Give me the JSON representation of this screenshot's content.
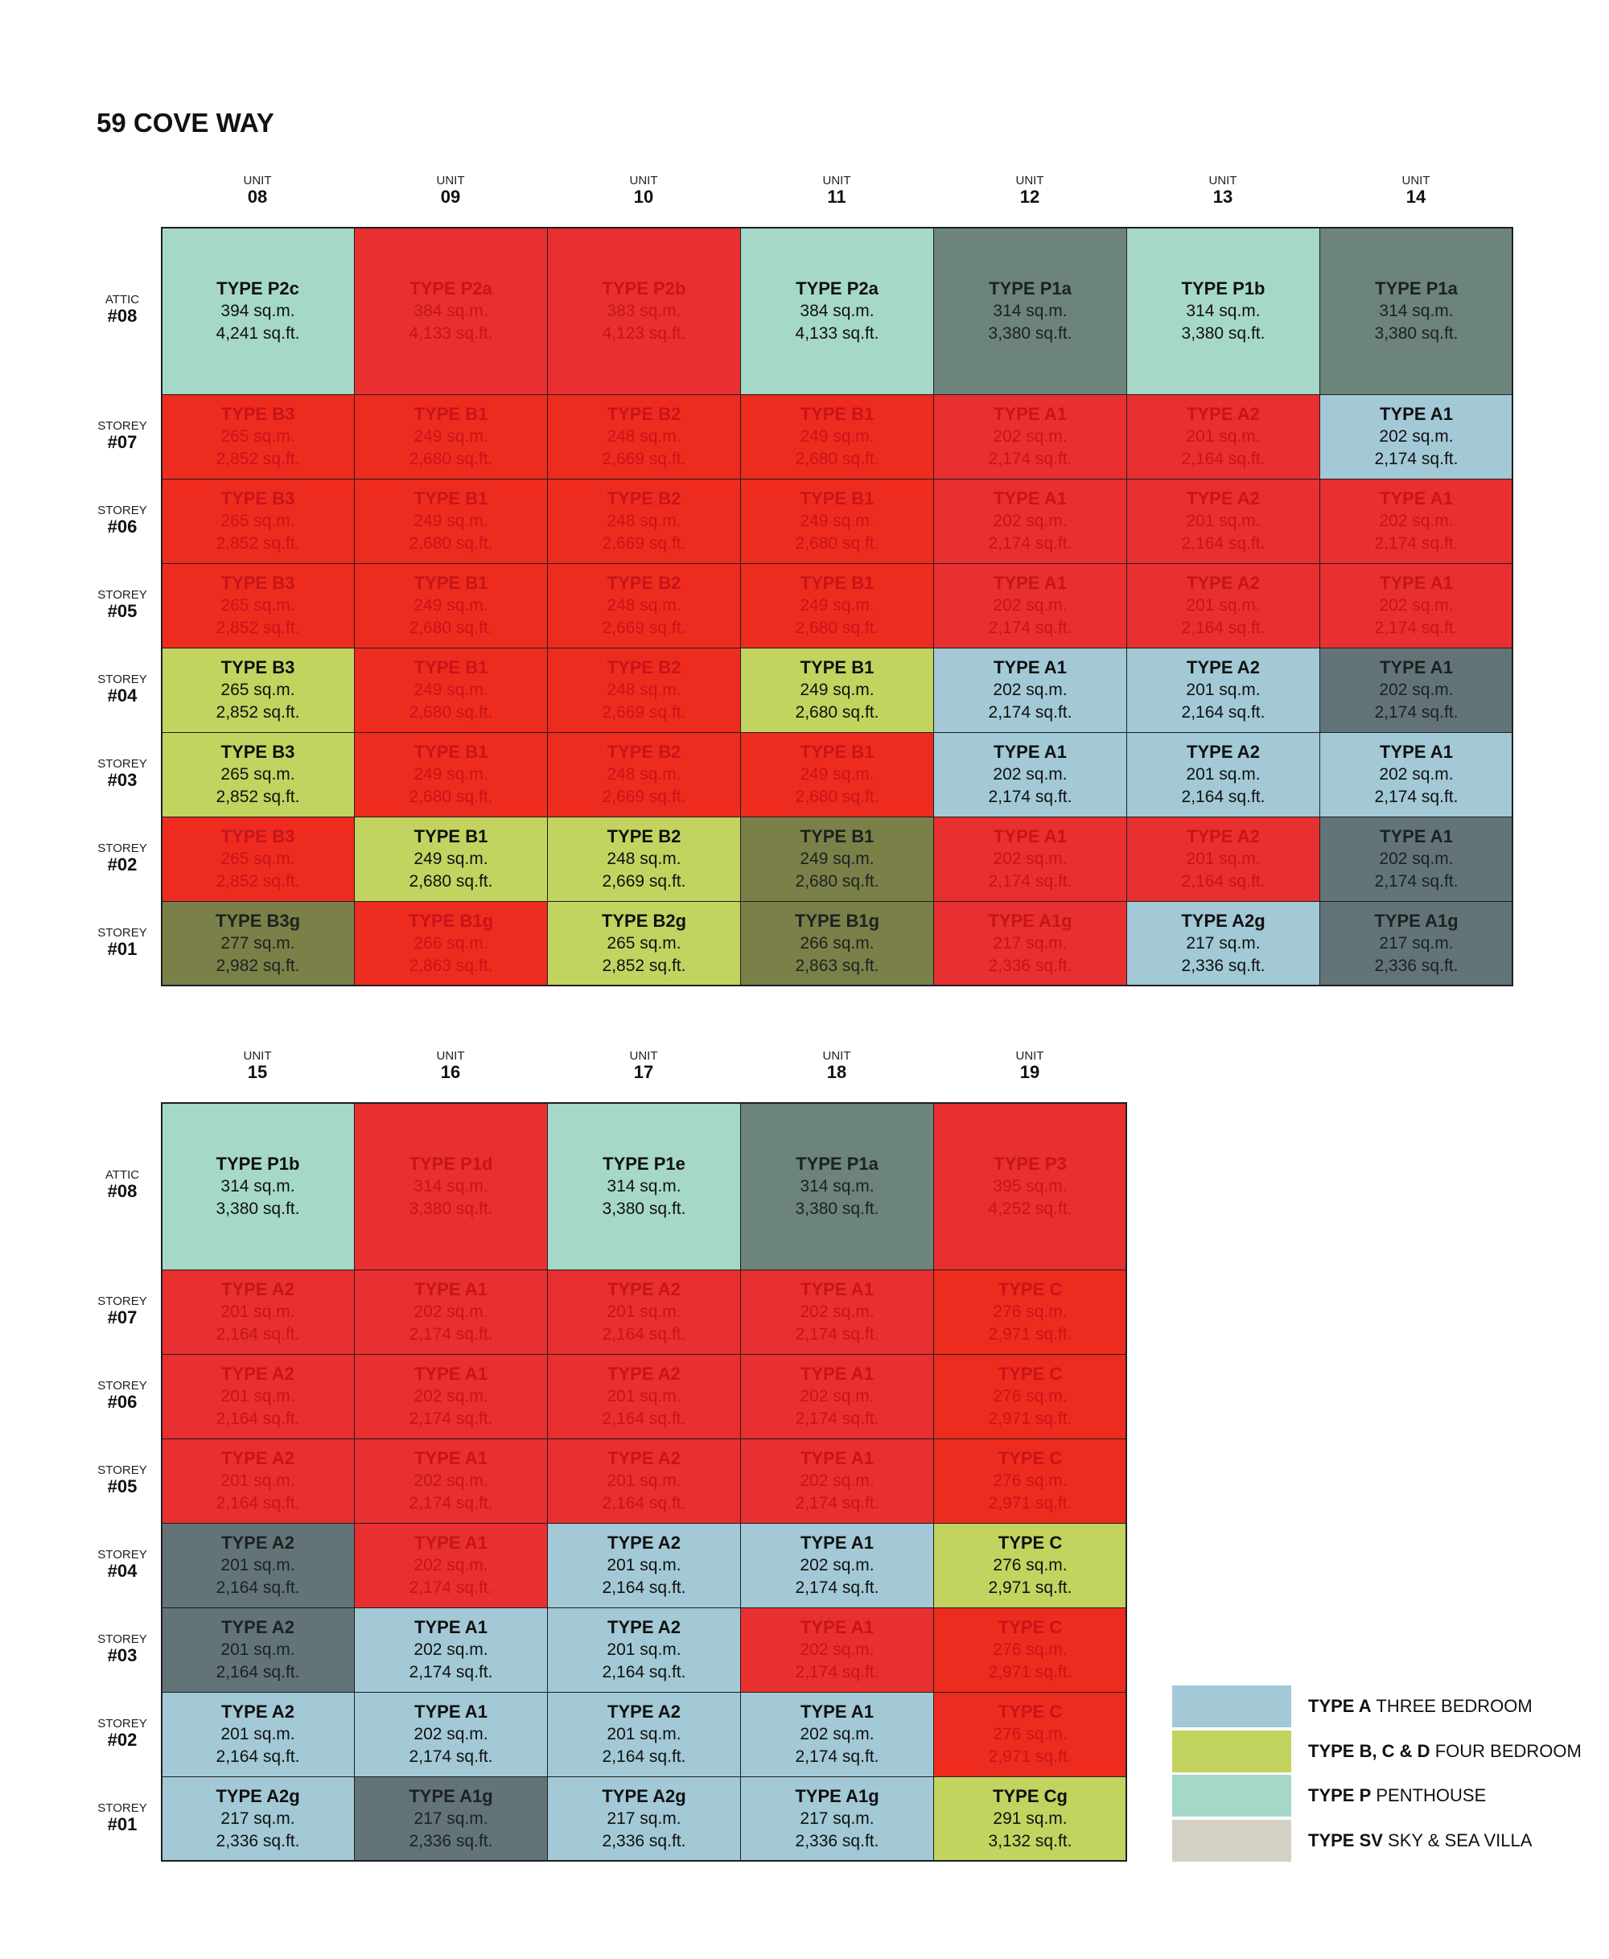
{
  "title": "59 COVE WAY",
  "blocks": [
    {
      "units": [
        {
          "label": "UNIT",
          "number": "08"
        },
        {
          "label": "UNIT",
          "number": "09"
        },
        {
          "label": "UNIT",
          "number": "10"
        },
        {
          "label": "UNIT",
          "number": "11"
        },
        {
          "label": "UNIT",
          "number": "12"
        },
        {
          "label": "UNIT",
          "number": "13"
        },
        {
          "label": "UNIT",
          "number": "14"
        }
      ],
      "floors": [
        {
          "label": "ATTIC",
          "number": "#08",
          "cells": [
            {
              "type": "TYPE P2c",
              "sqm": "394 sq.m.",
              "sqft": "4,241 sq.ft.",
              "color": "#a5d8c9"
            },
            {
              "type": "TYPE P2a",
              "sqm": "384 sq.m.",
              "sqft": "4,133 sq.ft.",
              "color": "#e7302f"
            },
            {
              "type": "TYPE P2b",
              "sqm": "383 sq.m.",
              "sqft": "4,123 sq.ft.",
              "color": "#e7302f"
            },
            {
              "type": "TYPE P2a",
              "sqm": "384 sq.m.",
              "sqft": "4,133 sq.ft.",
              "color": "#a5d8c9"
            },
            {
              "type": "TYPE P1a",
              "sqm": "314 sq.m.",
              "sqft": "3,380 sq.ft.",
              "color": "#6c8479"
            },
            {
              "type": "TYPE P1b",
              "sqm": "314 sq.m.",
              "sqft": "3,380 sq.ft.",
              "color": "#a5d8c9"
            },
            {
              "type": "TYPE P1a",
              "sqm": "314 sq.m.",
              "sqft": "3,380 sq.ft.",
              "color": "#6c8479"
            }
          ]
        },
        {
          "label": "STOREY",
          "number": "#07",
          "cells": [
            {
              "type": "TYPE B3",
              "sqm": "265 sq.m.",
              "sqft": "2,852 sq.ft.",
              "color": "#ee2b1f"
            },
            {
              "type": "TYPE B1",
              "sqm": "249 sq.m.",
              "sqft": "2,680 sq.ft.",
              "color": "#ee2b1f"
            },
            {
              "type": "TYPE B2",
              "sqm": "248 sq.m.",
              "sqft": "2,669 sq.ft.",
              "color": "#ee2b1f"
            },
            {
              "type": "TYPE B1",
              "sqm": "249 sq.m.",
              "sqft": "2,680 sq.ft.",
              "color": "#ee2b1f"
            },
            {
              "type": "TYPE A1",
              "sqm": "202 sq.m.",
              "sqft": "2,174 sq.ft.",
              "color": "#e7302f"
            },
            {
              "type": "TYPE A2",
              "sqm": "201 sq.m.",
              "sqft": "2,164 sq.ft.",
              "color": "#e7302f"
            },
            {
              "type": "TYPE A1",
              "sqm": "202 sq.m.",
              "sqft": "2,174 sq.ft.",
              "color": "#a2c9d5"
            }
          ]
        },
        {
          "label": "STOREY",
          "number": "#06",
          "cells": [
            {
              "type": "TYPE B3",
              "sqm": "265 sq.m.",
              "sqft": "2,852 sq.ft.",
              "color": "#ee2b1f"
            },
            {
              "type": "TYPE B1",
              "sqm": "249 sq.m.",
              "sqft": "2,680 sq.ft.",
              "color": "#ee2b1f"
            },
            {
              "type": "TYPE B2",
              "sqm": "248 sq.m.",
              "sqft": "2,669 sq.ft.",
              "color": "#ee2b1f"
            },
            {
              "type": "TYPE B1",
              "sqm": "249 sq.m.",
              "sqft": "2,680 sq.ft.",
              "color": "#ee2b1f"
            },
            {
              "type": "TYPE A1",
              "sqm": "202 sq.m.",
              "sqft": "2,174 sq.ft.",
              "color": "#e7302f"
            },
            {
              "type": "TYPE A2",
              "sqm": "201 sq.m.",
              "sqft": "2,164 sq.ft.",
              "color": "#e7302f"
            },
            {
              "type": "TYPE A1",
              "sqm": "202 sq.m.",
              "sqft": "2,174 sq.ft.",
              "color": "#e7302f"
            }
          ]
        },
        {
          "label": "STOREY",
          "number": "#05",
          "cells": [
            {
              "type": "TYPE B3",
              "sqm": "265 sq.m.",
              "sqft": "2,852 sq.ft.",
              "color": "#ee2b1f"
            },
            {
              "type": "TYPE B1",
              "sqm": "249 sq.m.",
              "sqft": "2,680 sq.ft.",
              "color": "#ee2b1f"
            },
            {
              "type": "TYPE B2",
              "sqm": "248 sq.m.",
              "sqft": "2,669 sq.ft.",
              "color": "#ee2b1f"
            },
            {
              "type": "TYPE B1",
              "sqm": "249 sq.m.",
              "sqft": "2,680 sq.ft.",
              "color": "#ee2b1f"
            },
            {
              "type": "TYPE A1",
              "sqm": "202 sq.m.",
              "sqft": "2,174 sq.ft.",
              "color": "#e7302f"
            },
            {
              "type": "TYPE A2",
              "sqm": "201 sq.m.",
              "sqft": "2,164 sq.ft.",
              "color": "#e7302f"
            },
            {
              "type": "TYPE A1",
              "sqm": "202 sq.m.",
              "sqft": "2,174 sq.ft.",
              "color": "#e7302f"
            }
          ]
        },
        {
          "label": "STOREY",
          "number": "#04",
          "cells": [
            {
              "type": "TYPE B3",
              "sqm": "265 sq.m.",
              "sqft": "2,852 sq.ft.",
              "color": "#c3d35f"
            },
            {
              "type": "TYPE B1",
              "sqm": "249 sq.m.",
              "sqft": "2,680 sq.ft.",
              "color": "#ee2b1f"
            },
            {
              "type": "TYPE B2",
              "sqm": "248 sq.m.",
              "sqft": "2,669 sq.ft.",
              "color": "#ee2b1f"
            },
            {
              "type": "TYPE B1",
              "sqm": "249 sq.m.",
              "sqft": "2,680 sq.ft.",
              "color": "#c3d35f"
            },
            {
              "type": "TYPE A1",
              "sqm": "202 sq.m.",
              "sqft": "2,174 sq.ft.",
              "color": "#a2c9d5"
            },
            {
              "type": "TYPE A2",
              "sqm": "201 sq.m.",
              "sqft": "2,164 sq.ft.",
              "color": "#a2c9d5"
            },
            {
              "type": "TYPE A1",
              "sqm": "202 sq.m.",
              "sqft": "2,174 sq.ft.",
              "color": "#637479"
            }
          ]
        },
        {
          "label": "STOREY",
          "number": "#03",
          "cells": [
            {
              "type": "TYPE B3",
              "sqm": "265 sq.m.",
              "sqft": "2,852 sq.ft.",
              "color": "#c3d35f"
            },
            {
              "type": "TYPE B1",
              "sqm": "249 sq.m.",
              "sqft": "2,680 sq.ft.",
              "color": "#ee2b1f"
            },
            {
              "type": "TYPE B2",
              "sqm": "248 sq.m.",
              "sqft": "2,669 sq.ft.",
              "color": "#ee2b1f"
            },
            {
              "type": "TYPE B1",
              "sqm": "249 sq.m.",
              "sqft": "2,680 sq.ft.",
              "color": "#ee2b1f"
            },
            {
              "type": "TYPE A1",
              "sqm": "202 sq.m.",
              "sqft": "2,174 sq.ft.",
              "color": "#a2c9d5"
            },
            {
              "type": "TYPE A2",
              "sqm": "201 sq.m.",
              "sqft": "2,164 sq.ft.",
              "color": "#a2c9d5"
            },
            {
              "type": "TYPE A1",
              "sqm": "202 sq.m.",
              "sqft": "2,174 sq.ft.",
              "color": "#a2c9d5"
            }
          ]
        },
        {
          "label": "STOREY",
          "number": "#02",
          "cells": [
            {
              "type": "TYPE B3",
              "sqm": "265 sq.m.",
              "sqft": "2,852 sq.ft.",
              "color": "#ee2b1f"
            },
            {
              "type": "TYPE B1",
              "sqm": "249 sq.m.",
              "sqft": "2,680 sq.ft.",
              "color": "#c3d35f"
            },
            {
              "type": "TYPE B2",
              "sqm": "248 sq.m.",
              "sqft": "2,669 sq.ft.",
              "color": "#c3d35f"
            },
            {
              "type": "TYPE B1",
              "sqm": "249 sq.m.",
              "sqft": "2,680 sq.ft.",
              "color": "#7a8048"
            },
            {
              "type": "TYPE A1",
              "sqm": "202 sq.m.",
              "sqft": "2,174 sq.ft.",
              "color": "#e7302f"
            },
            {
              "type": "TYPE A2",
              "sqm": "201 sq.m.",
              "sqft": "2,164 sq.ft.",
              "color": "#e7302f"
            },
            {
              "type": "TYPE A1",
              "sqm": "202 sq.m.",
              "sqft": "2,174 sq.ft.",
              "color": "#637479"
            }
          ]
        },
        {
          "label": "STOREY",
          "number": "#01",
          "cells": [
            {
              "type": "TYPE B3g",
              "sqm": "277 sq.m.",
              "sqft": "2,982 sq.ft.",
              "color": "#7a8048"
            },
            {
              "type": "TYPE B1g",
              "sqm": "266 sq.m.",
              "sqft": "2,863 sq.ft.",
              "color": "#ee2b1f"
            },
            {
              "type": "TYPE B2g",
              "sqm": "265 sq.m.",
              "sqft": "2,852 sq.ft.",
              "color": "#c3d35f"
            },
            {
              "type": "TYPE B1g",
              "sqm": "266 sq.m.",
              "sqft": "2,863 sq.ft.",
              "color": "#7a8048"
            },
            {
              "type": "TYPE A1g",
              "sqm": "217 sq.m.",
              "sqft": "2,336 sq.ft.",
              "color": "#e7302f"
            },
            {
              "type": "TYPE A2g",
              "sqm": "217 sq.m.",
              "sqft": "2,336 sq.ft.",
              "color": "#a2c9d5"
            },
            {
              "type": "TYPE A1g",
              "sqm": "217 sq.m.",
              "sqft": "2,336 sq.ft.",
              "color": "#637479"
            }
          ]
        }
      ]
    },
    {
      "units": [
        {
          "label": "UNIT",
          "number": "15"
        },
        {
          "label": "UNIT",
          "number": "16"
        },
        {
          "label": "UNIT",
          "number": "17"
        },
        {
          "label": "UNIT",
          "number": "18"
        },
        {
          "label": "UNIT",
          "number": "19"
        }
      ],
      "floors": [
        {
          "label": "ATTIC",
          "number": "#08",
          "cells": [
            {
              "type": "TYPE P1b",
              "sqm": "314 sq.m.",
              "sqft": "3,380 sq.ft.",
              "color": "#a5d8c9"
            },
            {
              "type": "TYPE P1d",
              "sqm": "314 sq.m.",
              "sqft": "3,380 sq.ft.",
              "color": "#e7302f"
            },
            {
              "type": "TYPE P1e",
              "sqm": "314 sq.m.",
              "sqft": "3,380 sq.ft.",
              "color": "#a5d8c9"
            },
            {
              "type": "TYPE P1a",
              "sqm": "314 sq.m.",
              "sqft": "3,380 sq.ft.",
              "color": "#6c8479"
            },
            {
              "type": "TYPE P3",
              "sqm": "395 sq.m.",
              "sqft": "4,252 sq.ft.",
              "color": "#e7302f"
            }
          ]
        },
        {
          "label": "STOREY",
          "number": "#07",
          "cells": [
            {
              "type": "TYPE A2",
              "sqm": "201 sq.m.",
              "sqft": "2,164 sq.ft.",
              "color": "#e7302f"
            },
            {
              "type": "TYPE A1",
              "sqm": "202 sq.m.",
              "sqft": "2,174 sq.ft.",
              "color": "#e7302f"
            },
            {
              "type": "TYPE A2",
              "sqm": "201 sq.m.",
              "sqft": "2,164 sq.ft.",
              "color": "#e7302f"
            },
            {
              "type": "TYPE A1",
              "sqm": "202 sq.m.",
              "sqft": "2,174 sq.ft.",
              "color": "#e7302f"
            },
            {
              "type": "TYPE C",
              "sqm": "276 sq.m.",
              "sqft": "2,971 sq.ft.",
              "color": "#ee2b1f"
            }
          ]
        },
        {
          "label": "STOREY",
          "number": "#06",
          "cells": [
            {
              "type": "TYPE A2",
              "sqm": "201 sq.m.",
              "sqft": "2,164 sq.ft.",
              "color": "#e7302f"
            },
            {
              "type": "TYPE A1",
              "sqm": "202 sq.m.",
              "sqft": "2,174 sq.ft.",
              "color": "#e7302f"
            },
            {
              "type": "TYPE A2",
              "sqm": "201 sq.m.",
              "sqft": "2,164 sq.ft.",
              "color": "#e7302f"
            },
            {
              "type": "TYPE A1",
              "sqm": "202 sq.m.",
              "sqft": "2,174 sq.ft.",
              "color": "#e7302f"
            },
            {
              "type": "TYPE C",
              "sqm": "276 sq.m.",
              "sqft": "2,971 sq.ft.",
              "color": "#ee2b1f"
            }
          ]
        },
        {
          "label": "STOREY",
          "number": "#05",
          "cells": [
            {
              "type": "TYPE A2",
              "sqm": "201 sq.m.",
              "sqft": "2,164 sq.ft.",
              "color": "#e7302f"
            },
            {
              "type": "TYPE A1",
              "sqm": "202 sq.m.",
              "sqft": "2,174 sq.ft.",
              "color": "#e7302f"
            },
            {
              "type": "TYPE A2",
              "sqm": "201 sq.m.",
              "sqft": "2,164 sq.ft.",
              "color": "#e7302f"
            },
            {
              "type": "TYPE A1",
              "sqm": "202 sq.m.",
              "sqft": "2,174 sq.ft.",
              "color": "#e7302f"
            },
            {
              "type": "TYPE C",
              "sqm": "276 sq.m.",
              "sqft": "2,971 sq.ft.",
              "color": "#ee2b1f"
            }
          ]
        },
        {
          "label": "STOREY",
          "number": "#04",
          "cells": [
            {
              "type": "TYPE A2",
              "sqm": "201 sq.m.",
              "sqft": "2,164 sq.ft.",
              "color": "#637479"
            },
            {
              "type": "TYPE A1",
              "sqm": "202 sq.m.",
              "sqft": "2,174 sq.ft.",
              "color": "#e7302f"
            },
            {
              "type": "TYPE A2",
              "sqm": "201 sq.m.",
              "sqft": "2,164 sq.ft.",
              "color": "#a2c9d5"
            },
            {
              "type": "TYPE A1",
              "sqm": "202 sq.m.",
              "sqft": "2,174 sq.ft.",
              "color": "#a2c9d5"
            },
            {
              "type": "TYPE C",
              "sqm": "276 sq.m.",
              "sqft": "2,971 sq.ft.",
              "color": "#c3d35f"
            }
          ]
        },
        {
          "label": "STOREY",
          "number": "#03",
          "cells": [
            {
              "type": "TYPE A2",
              "sqm": "201 sq.m.",
              "sqft": "2,164 sq.ft.",
              "color": "#637479"
            },
            {
              "type": "TYPE A1",
              "sqm": "202 sq.m.",
              "sqft": "2,174 sq.ft.",
              "color": "#a2c9d5"
            },
            {
              "type": "TYPE A2",
              "sqm": "201 sq.m.",
              "sqft": "2,164 sq.ft.",
              "color": "#a2c9d5"
            },
            {
              "type": "TYPE A1",
              "sqm": "202 sq.m.",
              "sqft": "2,174 sq.ft.",
              "color": "#e7302f"
            },
            {
              "type": "TYPE C",
              "sqm": "276 sq.m.",
              "sqft": "2,971 sq.ft.",
              "color": "#ee2b1f"
            }
          ]
        },
        {
          "label": "STOREY",
          "number": "#02",
          "cells": [
            {
              "type": "TYPE A2",
              "sqm": "201 sq.m.",
              "sqft": "2,164 sq.ft.",
              "color": "#a2c9d5"
            },
            {
              "type": "TYPE A1",
              "sqm": "202 sq.m.",
              "sqft": "2,174 sq.ft.",
              "color": "#a2c9d5"
            },
            {
              "type": "TYPE A2",
              "sqm": "201 sq.m.",
              "sqft": "2,164 sq.ft.",
              "color": "#a2c9d5"
            },
            {
              "type": "TYPE A1",
              "sqm": "202 sq.m.",
              "sqft": "2,174 sq.ft.",
              "color": "#a2c9d5"
            },
            {
              "type": "TYPE C",
              "sqm": "276 sq.m.",
              "sqft": "2,971 sq.ft.",
              "color": "#ee2b1f"
            }
          ]
        },
        {
          "label": "STOREY",
          "number": "#01",
          "cells": [
            {
              "type": "TYPE A2g",
              "sqm": "217 sq.m.",
              "sqft": "2,336 sq.ft.",
              "color": "#a2c9d5"
            },
            {
              "type": "TYPE A1g",
              "sqm": "217 sq.m.",
              "sqft": "2,336 sq.ft.",
              "color": "#637479"
            },
            {
              "type": "TYPE A2g",
              "sqm": "217 sq.m.",
              "sqft": "2,336 sq.ft.",
              "color": "#a2c9d5"
            },
            {
              "type": "TYPE A1g",
              "sqm": "217 sq.m.",
              "sqft": "2,336 sq.ft.",
              "color": "#a2c9d5"
            },
            {
              "type": "TYPE Cg",
              "sqm": "291 sq.m.",
              "sqft": "3,132 sq.ft.",
              "color": "#c3d35f"
            }
          ]
        }
      ]
    }
  ],
  "legend": [
    {
      "bold": "TYPE A",
      "text": "THREE BEDROOM",
      "color": "#a2c9d5"
    },
    {
      "bold": "TYPE B, C & D",
      "text": "FOUR BEDROOM",
      "color": "#c3d35f"
    },
    {
      "bold": "TYPE P",
      "text": "PENTHOUSE",
      "color": "#a5d8c9"
    },
    {
      "bold": "TYPE SV",
      "text": "SKY & SEA VILLA",
      "color": "#d2d1c3"
    }
  ]
}
